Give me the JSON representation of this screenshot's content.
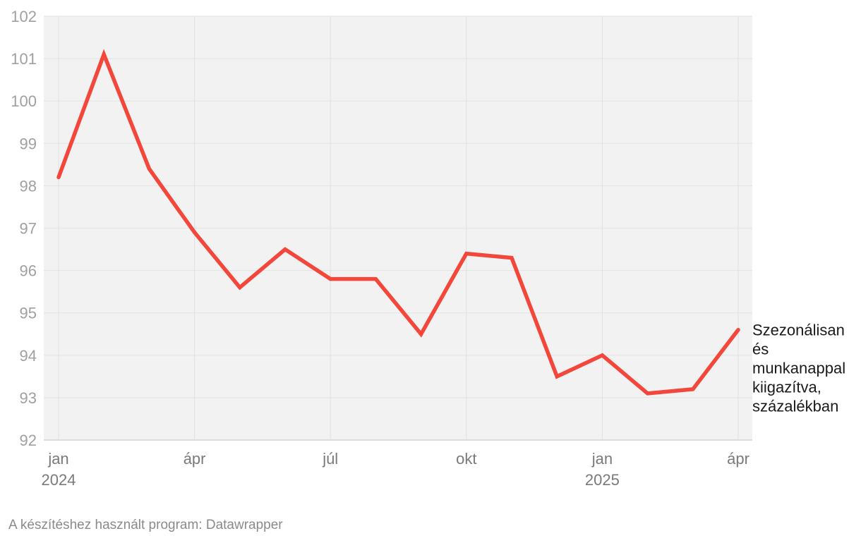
{
  "chart_data": {
    "type": "line",
    "title": "",
    "xlabel": "",
    "ylabel": "",
    "ylim": [
      92,
      102
    ],
    "y_ticks": [
      92,
      93,
      94,
      95,
      96,
      97,
      98,
      99,
      100,
      101,
      102
    ],
    "x": [
      "2024-01",
      "2024-02",
      "2024-03",
      "2024-04",
      "2024-05",
      "2024-06",
      "2024-07",
      "2024-08",
      "2024-09",
      "2024-10",
      "2024-11",
      "2024-12",
      "2025-01",
      "2025-02",
      "2025-03",
      "2025-04"
    ],
    "x_ticks": [
      {
        "x": "2024-01",
        "label": "jan",
        "sublabel": "2024"
      },
      {
        "x": "2024-04",
        "label": "ápr",
        "sublabel": ""
      },
      {
        "x": "2024-07",
        "label": "júl",
        "sublabel": ""
      },
      {
        "x": "2024-10",
        "label": "okt",
        "sublabel": ""
      },
      {
        "x": "2025-01",
        "label": "jan",
        "sublabel": "2025"
      },
      {
        "x": "2025-04",
        "label": "ápr",
        "sublabel": ""
      }
    ],
    "grid": true,
    "series": [
      {
        "label_lines": [
          "Szezonálisan",
          "és",
          "munkanappal",
          "kiigazítva,",
          "százalékban"
        ],
        "color": "#f4473c",
        "values": [
          98.2,
          101.1,
          98.4,
          96.9,
          95.6,
          96.5,
          95.8,
          95.8,
          94.5,
          96.4,
          96.3,
          93.5,
          94.0,
          93.1,
          93.2,
          94.6
        ]
      }
    ]
  },
  "footer": {
    "credit": "A készítéshez használt program: Datawrapper"
  }
}
